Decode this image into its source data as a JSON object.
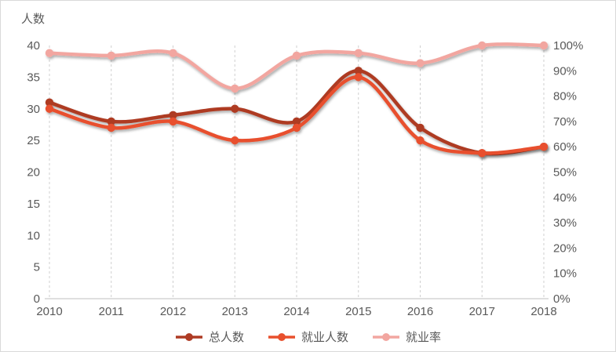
{
  "chart_data": {
    "type": "line",
    "categories": [
      "2010",
      "2011",
      "2012",
      "2013",
      "2014",
      "2015",
      "2016",
      "2017",
      "2018"
    ],
    "series": [
      {
        "key": "total",
        "name": "总人数",
        "axis": "left",
        "color": "#AE3B24",
        "values": [
          31,
          28,
          29,
          30,
          28,
          36,
          27,
          23,
          24
        ]
      },
      {
        "key": "employed",
        "name": "就业人数",
        "axis": "left",
        "color": "#E8502D",
        "values": [
          30,
          27,
          28,
          25,
          27,
          35,
          25,
          23,
          24
        ]
      },
      {
        "key": "rate",
        "name": "就业率",
        "axis": "right",
        "color": "#F2A6A0",
        "values": [
          97,
          96,
          97,
          83,
          96,
          97,
          93,
          100,
          100
        ]
      }
    ],
    "left_axis": {
      "title": "人数",
      "min": 0,
      "max": 40,
      "step": 5
    },
    "right_axis": {
      "min": 0,
      "max": 100,
      "step": 10,
      "suffix": "%"
    },
    "legend_position": "bottom",
    "grid": "vertical-dashed",
    "colors": {
      "tick_text": "#595959",
      "gridline": "#cfcfcf",
      "axis_line": "#bfbfbf",
      "border": "#d9d9d9"
    }
  }
}
